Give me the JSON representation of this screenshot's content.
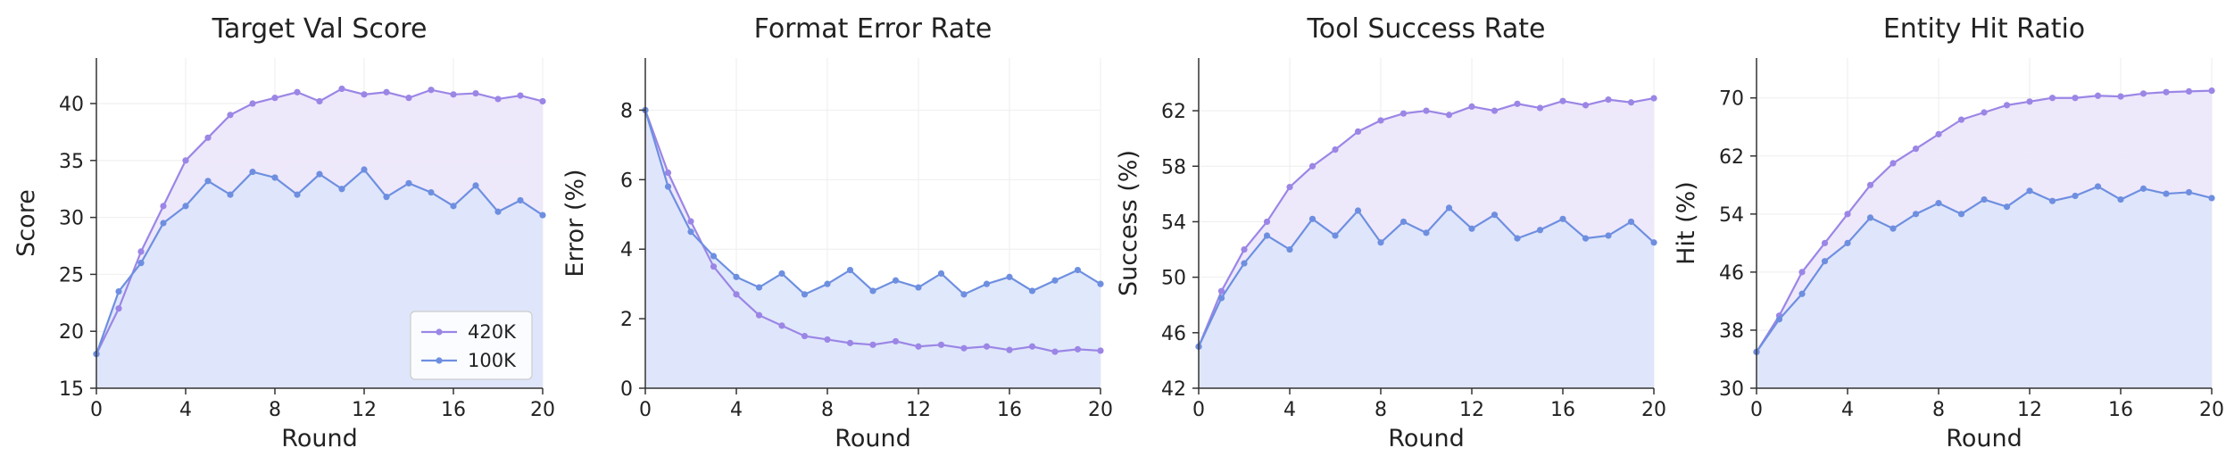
{
  "colors": {
    "series_420k": "#9b86e6",
    "series_100k": "#6e8fe0",
    "fill_420k": "#ece6fb",
    "fill_100k": "#dde6fb",
    "axis": "#333333",
    "grid": "#eeeeee"
  },
  "chart_data": [
    {
      "type": "area",
      "title": "Target Val Score",
      "xlabel": "Round",
      "ylabel": "Score",
      "xlim": [
        0,
        20
      ],
      "ylim": [
        15,
        44
      ],
      "xticks": [
        0,
        4,
        8,
        12,
        16,
        20
      ],
      "yticks": [
        15,
        20,
        25,
        30,
        35,
        40
      ],
      "ytick_labels": [
        "15",
        "20",
        "25",
        "30",
        "35",
        "40"
      ],
      "xtick_labels": [
        "0",
        "4",
        "8",
        "12",
        "16",
        "20"
      ],
      "grid": true,
      "legend": {
        "show": true,
        "position": "lower-right"
      },
      "x": [
        0,
        1,
        2,
        3,
        4,
        5,
        6,
        7,
        8,
        9,
        10,
        11,
        12,
        13,
        14,
        15,
        16,
        17,
        18,
        19,
        20
      ],
      "series": [
        {
          "name": "420K",
          "values": [
            18,
            22,
            27,
            31,
            35,
            37,
            39,
            40,
            40.5,
            41,
            40.2,
            41.3,
            40.8,
            41,
            40.5,
            41.2,
            40.8,
            40.9,
            40.4,
            40.7,
            40.2
          ]
        },
        {
          "name": "100K",
          "values": [
            18,
            23.5,
            26,
            29.5,
            31,
            33.2,
            32,
            34,
            33.5,
            32,
            33.8,
            32.5,
            34.2,
            31.8,
            33,
            32.2,
            31,
            32.8,
            30.5,
            31.5,
            30.2
          ]
        }
      ]
    },
    {
      "type": "area",
      "title": "Format Error Rate",
      "xlabel": "Round",
      "ylabel": "Error (%)",
      "xlim": [
        0,
        20
      ],
      "ylim": [
        0,
        9.5
      ],
      "xticks": [
        0,
        4,
        8,
        12,
        16,
        20
      ],
      "yticks": [
        0,
        2,
        4,
        6,
        8
      ],
      "ytick_labels": [
        "0",
        "2",
        "4",
        "6",
        "8"
      ],
      "xtick_labels": [
        "0",
        "4",
        "8",
        "12",
        "16",
        "20"
      ],
      "grid": true,
      "legend": {
        "show": false
      },
      "x": [
        0,
        1,
        2,
        3,
        4,
        5,
        6,
        7,
        8,
        9,
        10,
        11,
        12,
        13,
        14,
        15,
        16,
        17,
        18,
        19,
        20
      ],
      "series": [
        {
          "name": "420K",
          "values": [
            8,
            6.2,
            4.8,
            3.5,
            2.7,
            2.1,
            1.8,
            1.5,
            1.4,
            1.3,
            1.25,
            1.35,
            1.2,
            1.25,
            1.15,
            1.2,
            1.1,
            1.2,
            1.05,
            1.12,
            1.08
          ]
        },
        {
          "name": "100K",
          "values": [
            8,
            5.8,
            4.5,
            3.8,
            3.2,
            2.9,
            3.3,
            2.7,
            3.0,
            3.4,
            2.8,
            3.1,
            2.9,
            3.3,
            2.7,
            3.0,
            3.2,
            2.8,
            3.1,
            3.4,
            3.0
          ]
        }
      ]
    },
    {
      "type": "area",
      "title": "Tool Success Rate",
      "xlabel": "Round",
      "ylabel": "Success (%)",
      "xlim": [
        0,
        20
      ],
      "ylim": [
        42,
        65.8
      ],
      "xticks": [
        0,
        4,
        8,
        12,
        16,
        20
      ],
      "yticks": [
        42,
        46,
        50,
        54,
        58,
        62
      ],
      "ytick_labels": [
        "42",
        "46",
        "50",
        "54",
        "58",
        "62"
      ],
      "xtick_labels": [
        "0",
        "4",
        "8",
        "12",
        "16",
        "20"
      ],
      "grid": true,
      "legend": {
        "show": false
      },
      "x": [
        0,
        1,
        2,
        3,
        4,
        5,
        6,
        7,
        8,
        9,
        10,
        11,
        12,
        13,
        14,
        15,
        16,
        17,
        18,
        19,
        20
      ],
      "series": [
        {
          "name": "420K",
          "values": [
            45,
            49,
            52,
            54,
            56.5,
            58,
            59.2,
            60.5,
            61.3,
            61.8,
            62,
            61.7,
            62.3,
            62,
            62.5,
            62.2,
            62.7,
            62.4,
            62.8,
            62.6,
            62.9
          ]
        },
        {
          "name": "100K",
          "values": [
            45,
            48.5,
            51,
            53,
            52,
            54.2,
            53,
            54.8,
            52.5,
            54,
            53.2,
            55,
            53.5,
            54.5,
            52.8,
            53.4,
            54.2,
            52.8,
            53,
            54,
            52.5
          ]
        }
      ]
    },
    {
      "type": "area",
      "title": "Entity Hit Ratio",
      "xlabel": "Round",
      "ylabel": "Hit (%)",
      "xlim": [
        0,
        20
      ],
      "ylim": [
        30,
        75.5
      ],
      "xticks": [
        0,
        4,
        8,
        12,
        16,
        20
      ],
      "yticks": [
        30,
        38,
        46,
        54,
        62,
        70
      ],
      "ytick_labels": [
        "30",
        "38",
        "46",
        "54",
        "62",
        "70"
      ],
      "xtick_labels": [
        "0",
        "4",
        "8",
        "12",
        "16",
        "20"
      ],
      "grid": true,
      "legend": {
        "show": false
      },
      "x": [
        0,
        1,
        2,
        3,
        4,
        5,
        6,
        7,
        8,
        9,
        10,
        11,
        12,
        13,
        14,
        15,
        16,
        17,
        18,
        19,
        20
      ],
      "series": [
        {
          "name": "420K",
          "values": [
            35,
            40,
            46,
            50,
            54,
            58,
            61,
            63,
            65,
            67,
            68,
            69,
            69.5,
            70,
            70,
            70.3,
            70.2,
            70.6,
            70.8,
            70.9,
            71
          ]
        },
        {
          "name": "100K",
          "values": [
            35,
            39.5,
            43,
            47.5,
            50,
            53.5,
            52,
            54,
            55.5,
            54,
            56,
            55,
            57.2,
            55.8,
            56.5,
            57.8,
            56,
            57.5,
            56.8,
            57,
            56.2
          ]
        }
      ]
    }
  ]
}
